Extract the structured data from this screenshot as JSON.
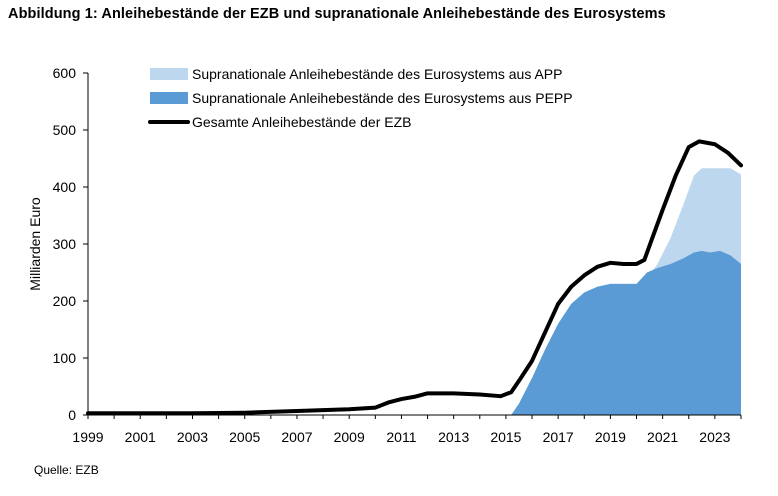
{
  "title": "Abbildung 1: Anleihebestände der EZB und supranationale Anleihebestände des Eurosystems",
  "source": "Quelle: EZB",
  "chart_data": {
    "type": "area",
    "ylabel": "Milliarden Euro",
    "xlabel": "",
    "xlim": [
      1999,
      2024
    ],
    "ylim": [
      0,
      600
    ],
    "x_ticks": [
      "1999",
      "2001",
      "2003",
      "2005",
      "2007",
      "2009",
      "2011",
      "2013",
      "2015",
      "2017",
      "2019",
      "2021",
      "2023"
    ],
    "y_ticks": [
      "0",
      "100",
      "200",
      "300",
      "400",
      "500",
      "600"
    ],
    "grid": false,
    "legend_position": "top-center",
    "colors": {
      "app": "#bdd7ee",
      "pepp": "#5b9bd5",
      "ecb": "#000000"
    },
    "series": [
      {
        "name": "Supranationale Anleihebestände des Eurosystems aus APP",
        "kind": "area",
        "points": [
          [
            2015.2,
            0
          ],
          [
            2015.5,
            20
          ],
          [
            2016.0,
            65
          ],
          [
            2016.5,
            115
          ],
          [
            2017.0,
            160
          ],
          [
            2017.5,
            195
          ],
          [
            2018.0,
            215
          ],
          [
            2018.5,
            225
          ],
          [
            2019.0,
            230
          ],
          [
            2019.5,
            230
          ],
          [
            2020.0,
            230
          ],
          [
            2020.4,
            240
          ],
          [
            2020.8,
            265
          ],
          [
            2021.3,
            310
          ],
          [
            2021.8,
            370
          ],
          [
            2022.2,
            420
          ],
          [
            2022.5,
            433
          ],
          [
            2022.8,
            433
          ],
          [
            2023.2,
            433
          ],
          [
            2023.6,
            433
          ],
          [
            2024.0,
            422
          ]
        ]
      },
      {
        "name": "Supranationale Anleihebestände des Eurosystems aus PEPP",
        "kind": "area",
        "points": [
          [
            2015.2,
            0
          ],
          [
            2015.5,
            20
          ],
          [
            2016.0,
            65
          ],
          [
            2016.5,
            115
          ],
          [
            2017.0,
            160
          ],
          [
            2017.5,
            195
          ],
          [
            2018.0,
            215
          ],
          [
            2018.5,
            225
          ],
          [
            2019.0,
            230
          ],
          [
            2019.5,
            230
          ],
          [
            2020.0,
            230
          ],
          [
            2020.4,
            250
          ],
          [
            2020.8,
            258
          ],
          [
            2021.3,
            265
          ],
          [
            2021.8,
            275
          ],
          [
            2022.2,
            285
          ],
          [
            2022.5,
            288
          ],
          [
            2022.8,
            285
          ],
          [
            2023.2,
            288
          ],
          [
            2023.6,
            280
          ],
          [
            2024.0,
            265
          ]
        ]
      },
      {
        "name": "Gesamte Anleihebestände der EZB",
        "kind": "line",
        "points": [
          [
            1999.0,
            3
          ],
          [
            2001.0,
            3
          ],
          [
            2003.0,
            3
          ],
          [
            2005.0,
            4
          ],
          [
            2007.0,
            7
          ],
          [
            2009.0,
            10
          ],
          [
            2010.0,
            13
          ],
          [
            2010.5,
            22
          ],
          [
            2011.0,
            28
          ],
          [
            2011.5,
            32
          ],
          [
            2012.0,
            38
          ],
          [
            2013.0,
            38
          ],
          [
            2014.0,
            36
          ],
          [
            2014.8,
            33
          ],
          [
            2015.2,
            40
          ],
          [
            2015.5,
            60
          ],
          [
            2016.0,
            95
          ],
          [
            2016.5,
            145
          ],
          [
            2017.0,
            195
          ],
          [
            2017.5,
            225
          ],
          [
            2018.0,
            245
          ],
          [
            2018.5,
            260
          ],
          [
            2019.0,
            267
          ],
          [
            2019.5,
            265
          ],
          [
            2020.0,
            265
          ],
          [
            2020.3,
            272
          ],
          [
            2020.6,
            310
          ],
          [
            2021.0,
            360
          ],
          [
            2021.5,
            420
          ],
          [
            2022.0,
            470
          ],
          [
            2022.4,
            480
          ],
          [
            2023.0,
            475
          ],
          [
            2023.5,
            460
          ],
          [
            2024.0,
            438
          ]
        ]
      }
    ]
  }
}
